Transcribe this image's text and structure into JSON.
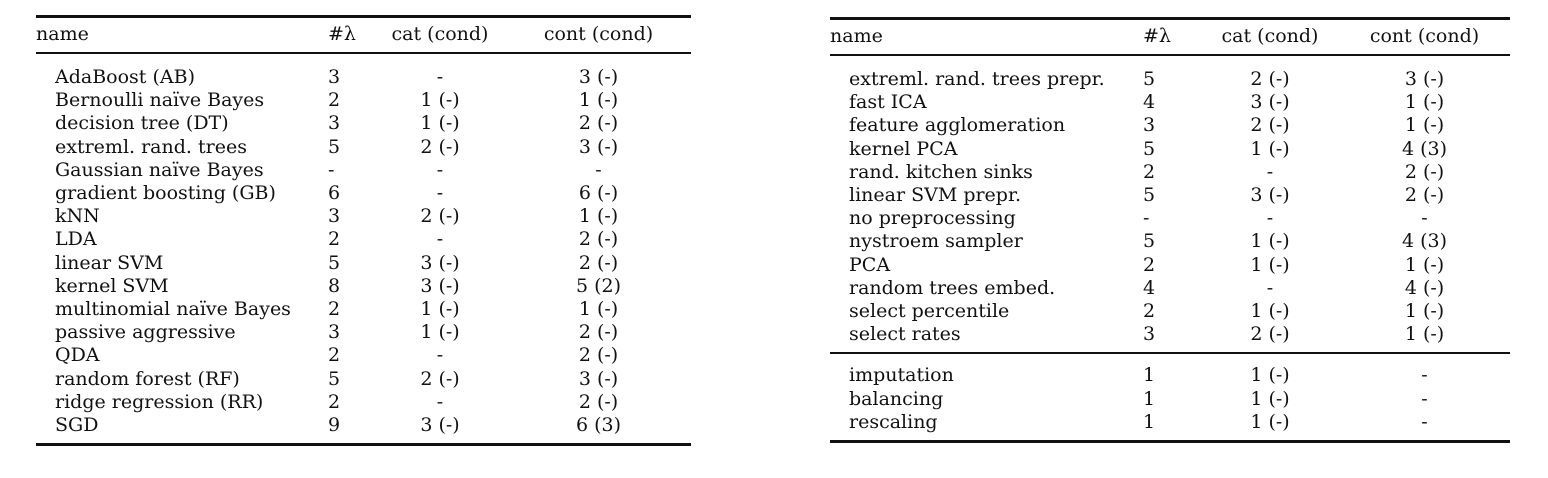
{
  "left_table": {
    "headers": {
      "name": "name",
      "num": "#λ",
      "cat": "cat (cond)",
      "cont": "cont (cond)"
    },
    "rows": [
      {
        "name": "AdaBoost (AB)",
        "num": "3",
        "cat": "-",
        "cont": "3 (-)"
      },
      {
        "name": "Bernoulli naïve Bayes",
        "num": "2",
        "cat": "1 (-)",
        "cont": "1 (-)"
      },
      {
        "name": "decision tree (DT)",
        "num": "3",
        "cat": "1 (-)",
        "cont": "2 (-)"
      },
      {
        "name": "extreml. rand. trees",
        "num": "5",
        "cat": "2 (-)",
        "cont": "3 (-)"
      },
      {
        "name": "Gaussian naïve Bayes",
        "num": "-",
        "cat": "-",
        "cont": "-"
      },
      {
        "name": "gradient boosting (GB)",
        "num": "6",
        "cat": "-",
        "cont": "6 (-)"
      },
      {
        "name": "kNN",
        "num": "3",
        "cat": "2 (-)",
        "cont": "1 (-)"
      },
      {
        "name": "LDA",
        "num": "2",
        "cat": "-",
        "cont": "2 (-)"
      },
      {
        "name": "linear SVM",
        "num": "5",
        "cat": "3 (-)",
        "cont": "2 (-)"
      },
      {
        "name": "kernel SVM",
        "num": "8",
        "cat": "3 (-)",
        "cont": "5 (2)"
      },
      {
        "name": "multinomial naïve Bayes",
        "num": "2",
        "cat": "1 (-)",
        "cont": "1 (-)"
      },
      {
        "name": "passive aggressive",
        "num": "3",
        "cat": "1 (-)",
        "cont": "2 (-)"
      },
      {
        "name": "QDA",
        "num": "2",
        "cat": "-",
        "cont": "2 (-)"
      },
      {
        "name": "random forest (RF)",
        "num": "5",
        "cat": "2 (-)",
        "cont": "3 (-)"
      },
      {
        "name": "ridge regression (RR)",
        "num": "2",
        "cat": "-",
        "cont": "2 (-)"
      },
      {
        "name": "SGD",
        "num": "9",
        "cat": "3 (-)",
        "cont": "6 (3)"
      }
    ]
  },
  "right_table": {
    "headers": {
      "name": "name",
      "num": "#λ",
      "cat": "cat (cond)",
      "cont": "cont (cond)"
    },
    "rows": [
      {
        "name": "extreml. rand. trees prepr.",
        "num": "5",
        "cat": "2 (-)",
        "cont": "3 (-)"
      },
      {
        "name": "fast ICA",
        "num": "4",
        "cat": "3 (-)",
        "cont": "1 (-)"
      },
      {
        "name": "feature agglomeration",
        "num": "3",
        "cat": "2 (-)",
        "cont": "1 (-)"
      },
      {
        "name": "kernel PCA",
        "num": "5",
        "cat": "1 (-)",
        "cont": "4 (3)"
      },
      {
        "name": "rand. kitchen sinks",
        "num": "2",
        "cat": "-",
        "cont": "2 (-)"
      },
      {
        "name": "linear SVM prepr.",
        "num": "5",
        "cat": "3 (-)",
        "cont": "2 (-)"
      },
      {
        "name": "no preprocessing",
        "num": "-",
        "cat": "-",
        "cont": "-"
      },
      {
        "name": "nystroem sampler",
        "num": "5",
        "cat": "1 (-)",
        "cont": "4 (3)"
      },
      {
        "name": "PCA",
        "num": "2",
        "cat": "1 (-)",
        "cont": "1 (-)"
      },
      {
        "name": "random trees embed.",
        "num": "4",
        "cat": "-",
        "cont": "4 (-)"
      },
      {
        "name": "select percentile",
        "num": "2",
        "cat": "1 (-)",
        "cont": "1 (-)"
      },
      {
        "name": "select rates",
        "num": "3",
        "cat": "2 (-)",
        "cont": "1 (-)"
      }
    ],
    "rows_extra": [
      {
        "name": "imputation",
        "num": "1",
        "cat": "1 (-)",
        "cont": "-"
      },
      {
        "name": "balancing",
        "num": "1",
        "cat": "1 (-)",
        "cont": "-"
      },
      {
        "name": "rescaling",
        "num": "1",
        "cat": "1 (-)",
        "cont": "-"
      }
    ]
  }
}
